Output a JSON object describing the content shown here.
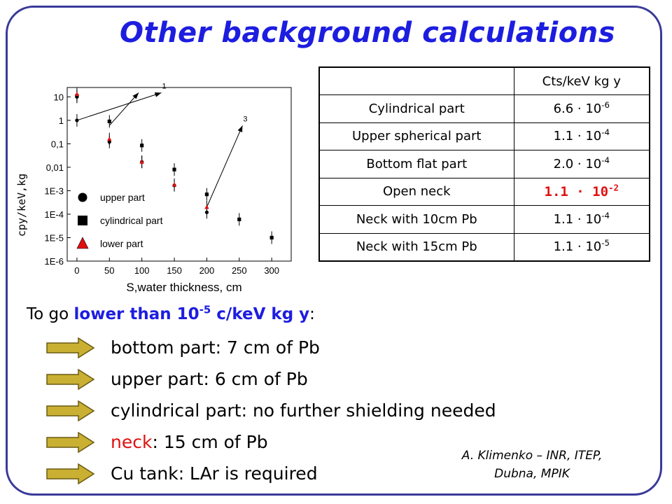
{
  "title": "Other background calculations",
  "chart_data": {
    "type": "scatter",
    "title": "",
    "xlabel": "S,water thickness, cm",
    "ylabel": "cpy/keV,kg",
    "x_ticks": [
      "0",
      "50",
      "100",
      "150",
      "200",
      "250",
      "300"
    ],
    "y_ticks": [
      "10",
      "1",
      "0,1",
      "0,01",
      "1E-3",
      "1E-4",
      "1E-5",
      "1E-6"
    ],
    "xlim": [
      -15,
      330
    ],
    "ylim_log10": [
      -6,
      1.4
    ],
    "series": [
      {
        "name": "upper part",
        "marker": "circle",
        "color": "#000000",
        "points": [
          [
            0,
            1
          ],
          [
            0,
            10
          ],
          [
            50,
            0.12
          ],
          [
            100,
            0.017
          ],
          [
            150,
            0.0017
          ],
          [
            200,
            0.00012
          ]
        ]
      },
      {
        "name": "cylindrical part",
        "marker": "square",
        "color": "#000000",
        "points": [
          [
            0,
            11
          ],
          [
            50,
            0.9
          ],
          [
            100,
            0.085
          ],
          [
            150,
            0.008
          ],
          [
            200,
            0.0007
          ],
          [
            250,
            6e-05
          ],
          [
            300,
            1e-05
          ]
        ]
      },
      {
        "name": "lower part",
        "marker": "triangle",
        "color": "#e01010",
        "points": [
          [
            0,
            13
          ],
          [
            50,
            0.16
          ],
          [
            100,
            0.017
          ],
          [
            150,
            0.0018
          ],
          [
            200,
            0.0002
          ]
        ]
      }
    ],
    "annotations": [
      {
        "text": "1",
        "points": [
          [
            0,
            1
          ],
          [
            130,
            15
          ]
        ]
      },
      {
        "text": "3",
        "points": [
          [
            200,
            0.0002
          ],
          [
            255,
            0.6
          ]
        ]
      },
      {
        "text": "",
        "points": [
          [
            50,
            0.6
          ],
          [
            95,
            15
          ]
        ]
      }
    ],
    "legend_position": "lower-left"
  },
  "table": {
    "header": [
      "",
      "Cts/keV kg y"
    ],
    "rows": [
      {
        "label": "Cylindrical part",
        "mantissa": "6.6 · 10",
        "exp": "-6",
        "highlight": false
      },
      {
        "label": "Upper spherical part",
        "mantissa": "1.1 · 10",
        "exp": "-4",
        "highlight": false
      },
      {
        "label": "Bottom flat part",
        "mantissa": "2.0 · 10",
        "exp": "-4",
        "highlight": false
      },
      {
        "label": "Open neck",
        "mantissa": "1.1 · 10",
        "exp": "-2",
        "highlight": true
      },
      {
        "label": "Neck with 10cm Pb",
        "mantissa": "1.1 · 10",
        "exp": "-4",
        "highlight": false
      },
      {
        "label": "Neck with 15cm Pb",
        "mantissa": "1.1 · 10",
        "exp": "-5",
        "highlight": false
      }
    ]
  },
  "intro": {
    "prefix": "To go ",
    "hl_text": "lower than 10",
    "hl_exp": "-5",
    "hl_suffix": " c/keV kg y",
    "suffix": ":"
  },
  "items": [
    {
      "text": "bottom part: 7 cm of Pb"
    },
    {
      "text": "upper part: 6 cm of Pb"
    },
    {
      "text": "cylindrical part: no further shielding needed"
    },
    {
      "red": "neck",
      "text": ": 15 cm of Pb"
    },
    {
      "text": "Cu tank: LAr is required"
    }
  ],
  "colors": {
    "title": "#1d1de0",
    "accent_red": "#e01010",
    "frame": "#3a3a9a",
    "arrow_fill": "#c9b033"
  },
  "credit": {
    "line1": "A. Klimenko – INR, ITEP,",
    "line2": "Dubna, MPIK"
  }
}
